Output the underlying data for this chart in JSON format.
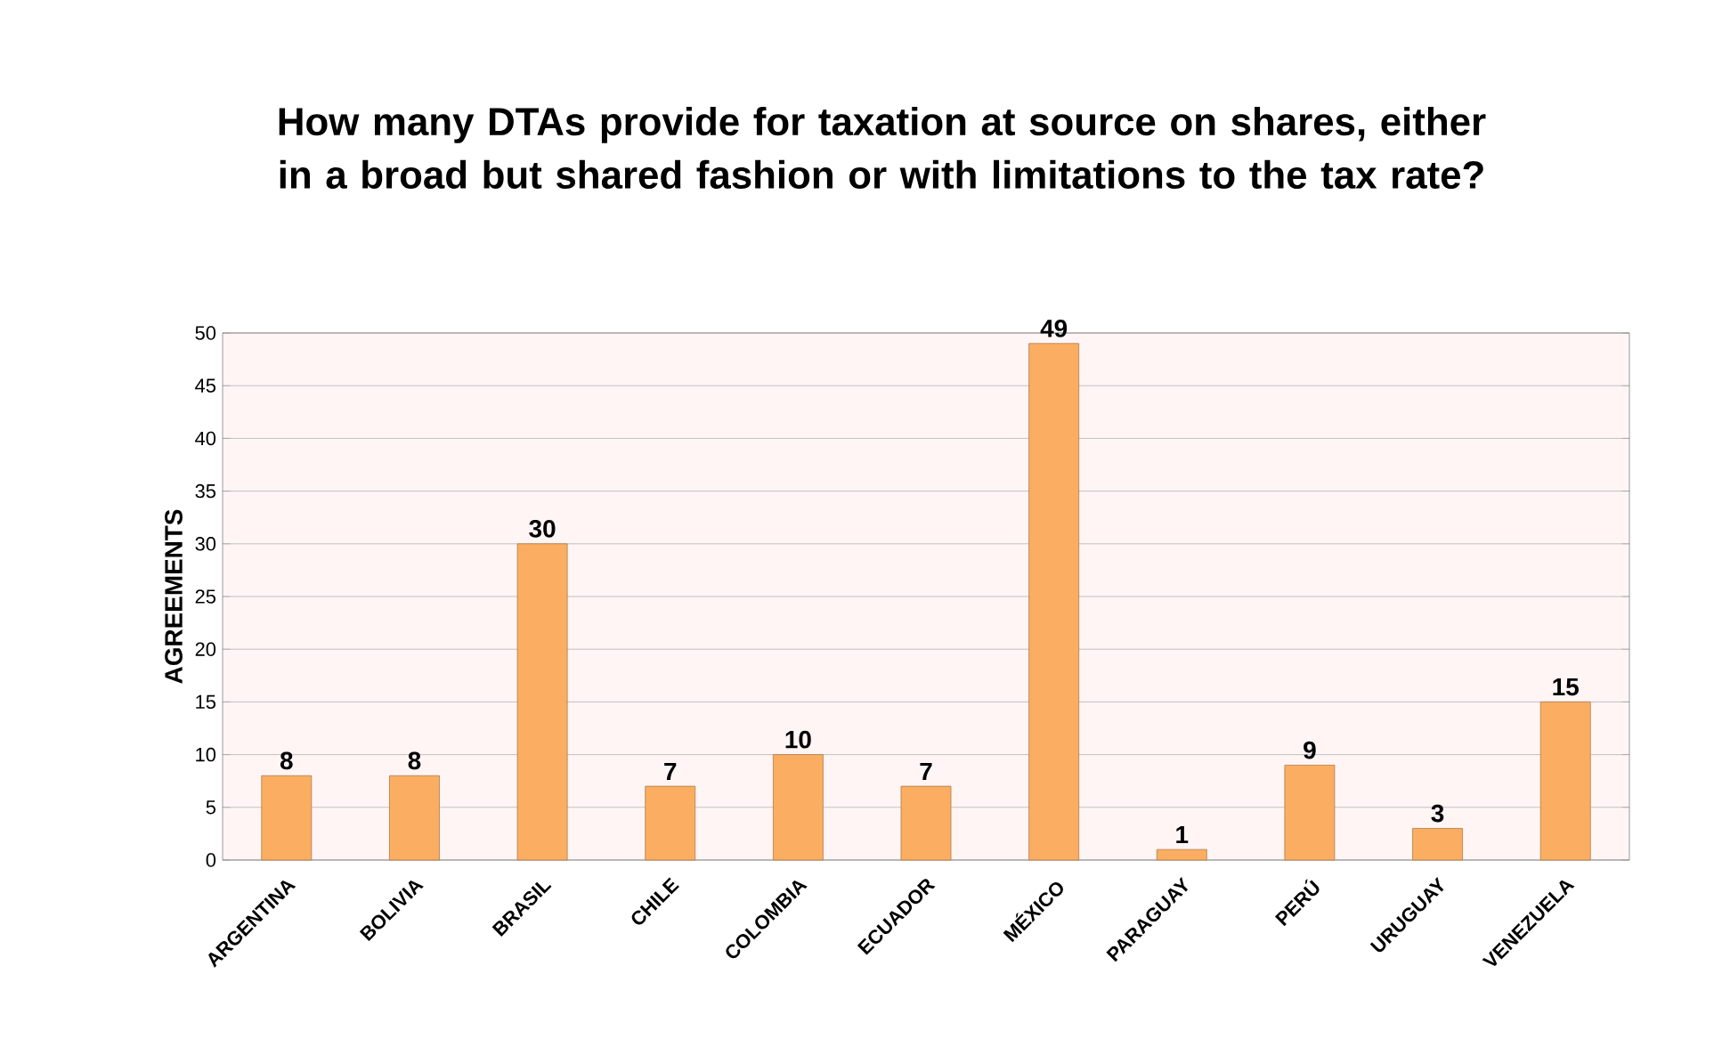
{
  "chart_data": {
    "type": "bar",
    "title": "How many DTAs provide for taxation at source on shares, either in a broad but shared fashion or with limitations to the tax rate?",
    "ylabel": "AGREEMENTS",
    "categories": [
      "ARGENTINA",
      "BOLIVIA",
      "BRASIL",
      "CHILE",
      "COLOMBIA",
      "ECUADOR",
      "MÉXICO",
      "PARAGUAY",
      "PERÚ",
      "URUGUAY",
      "VENEZUELA"
    ],
    "values": [
      8,
      8,
      30,
      7,
      10,
      7,
      49,
      1,
      9,
      3,
      15
    ],
    "color": "#fbae62",
    "ylim": [
      0,
      50
    ],
    "yticks": [
      0,
      5,
      10,
      15,
      20,
      25,
      30,
      35,
      40,
      45,
      50
    ],
    "grid": "y",
    "data_labels": true
  }
}
